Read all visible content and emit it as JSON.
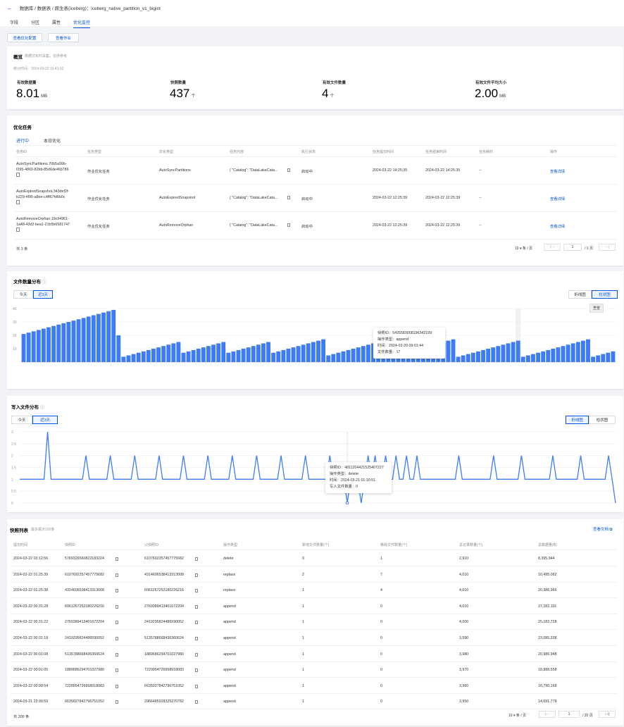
{
  "header": {
    "back": "←",
    "breadcrumb": "数据库 / 数据表 / 原生表(iceberg)：iceberg_native_partition_v1_bigint",
    "tabs": [
      "字段",
      "分区",
      "属性",
      "优化监控"
    ]
  },
  "actions": {
    "config": "查看优化配置",
    "jobs": "查看作业"
  },
  "overview": {
    "title": "概览",
    "subtitle": "数据非实时采集，仅供参考",
    "stat_time": "统计时间：2024-03-22 15:41:02",
    "metrics": [
      {
        "label": "有效数据量",
        "value": "8.01",
        "unit": "MB"
      },
      {
        "label": "快照数量",
        "value": "437",
        "unit": "个"
      },
      {
        "label": "有效文件数量",
        "value": "4",
        "unit": "个"
      },
      {
        "label": "有效文件平均大小",
        "value": "2.00",
        "unit": "MB"
      }
    ]
  },
  "tasks": {
    "title": "优化任务",
    "tabs": [
      "进行中",
      "本日优化"
    ],
    "columns": [
      "任务ID",
      "任务类型",
      "优化类型",
      "任务内容",
      "执行状态",
      "任务提交时间",
      "任务结束时间",
      "任务耗时",
      "操作"
    ],
    "rows": [
      {
        "id1": "AutoSyncPartitions.70b5a99b-",
        "id2": "f295-4860-82bb-85d6de46b786",
        "type": "作业优化任务",
        "opt": "AutoSyncPartitions",
        "content": "{ \"Catalog\": \"DataLakeCata...",
        "status": "启动中",
        "submit": "2024-03-22 14:25:35",
        "end": "2024-03-22 14:25:35",
        "cost": "--",
        "op": "查看详情"
      },
      {
        "id1": "AutoExpiredSnapshot.343def2f-",
        "id2": "b229-4f95-a8ee-c4ff67fd6b0c",
        "type": "作业优化任务",
        "opt": "AutoExpiredSnapshot",
        "content": "{ \"Catalog\": \"DataLakeCata...",
        "status": "启动中",
        "submit": "2024-03-22 12:25:39",
        "end": "2024-03-22 12:25:39",
        "cost": "--",
        "op": "查看详情"
      },
      {
        "id1": "AutoRemoveOrphan.19c94961-",
        "id2": "1a48-43d2-bea1-21b5b6581747",
        "type": "作业优化任务",
        "opt": "AutoRemoveOrphan",
        "content": "{ \"Catalog\": \"DataLakeCata...",
        "status": "启动中",
        "submit": "2024-03-22 12:25:39",
        "end": "2024-03-22 12:25:39",
        "cost": "--",
        "op": "查看详情"
      }
    ],
    "total": "共 3 条",
    "page_size": "10 ▾ 条 / 页",
    "page": "1",
    "pages": "/ 1 页"
  },
  "file_chart": {
    "title": "文件数量分布",
    "ranges": [
      "今天",
      "近3天"
    ],
    "views": [
      "折线图",
      "柱状图"
    ],
    "reset": "重置",
    "tooltip": {
      "l1": "快照ID：5425583008196342199",
      "l2": "操作类型：append",
      "l3": "时间：2024-03-20 09:01:44",
      "l4": "文件数量：17"
    }
  },
  "write_chart": {
    "title": "写入文件分布",
    "ranges": [
      "今天",
      "近3天"
    ],
    "views": [
      "折线图",
      "柱状图"
    ],
    "tooltip": {
      "l1": "快照ID：4811204421525407227",
      "l2": "操作类型：delete",
      "l3": "时间：2024-03-21 01:10:51",
      "l4": "写入文件数量：0"
    }
  },
  "chart_data": [
    {
      "type": "bar",
      "ylim": [
        0,
        40
      ],
      "yticks": [
        "40",
        "30",
        "20",
        "10"
      ],
      "values": [
        21,
        22,
        23,
        24,
        25,
        26,
        27,
        28,
        29,
        30,
        31,
        32,
        33,
        34,
        35,
        36,
        37,
        38,
        39,
        20,
        4,
        5,
        6,
        7,
        8,
        9,
        10,
        11,
        12,
        13,
        14,
        15,
        7,
        8,
        9,
        10,
        11,
        12,
        13,
        14,
        15,
        7,
        8,
        9,
        10,
        11,
        12,
        13,
        14,
        15,
        7,
        8,
        9,
        10,
        11,
        12,
        13,
        14,
        15,
        16,
        17,
        5,
        6,
        7,
        8,
        9,
        10,
        11,
        12,
        13,
        14,
        15,
        16,
        4,
        5,
        6,
        7,
        8,
        9,
        10,
        11,
        12,
        13,
        14,
        15,
        16,
        17,
        4,
        5,
        6,
        7,
        8,
        9,
        10,
        11,
        12,
        13,
        14,
        15,
        16,
        4,
        5,
        6,
        7,
        8,
        9,
        10,
        11,
        12,
        13,
        14,
        15,
        16,
        17,
        4,
        5,
        6,
        7,
        8
      ]
    },
    {
      "type": "line",
      "ylim": [
        0,
        3
      ],
      "yticks": [
        "3",
        "2.5",
        "2",
        "1.5",
        "1",
        "0.5",
        "0"
      ],
      "values": [
        1,
        1,
        1,
        1,
        1,
        1,
        1,
        1,
        3,
        1,
        1,
        1,
        1,
        1,
        1,
        1,
        1,
        1,
        1,
        2,
        1,
        1,
        1,
        1,
        1,
        1,
        2,
        1,
        1,
        1,
        1,
        1,
        1,
        2,
        1,
        1,
        1,
        1,
        1,
        1,
        2,
        1,
        1,
        1,
        1,
        1,
        1,
        2,
        1,
        1,
        1,
        1,
        1,
        1,
        2,
        1,
        1,
        1,
        1,
        1,
        1,
        2,
        1,
        1,
        1,
        1,
        1,
        1,
        2,
        1,
        1,
        1,
        1,
        1,
        1,
        2,
        1,
        1,
        1,
        1,
        1,
        1,
        2,
        1,
        1,
        1,
        1,
        1,
        1,
        2,
        1,
        1,
        1,
        1,
        0,
        1,
        1,
        1,
        0,
        1,
        2,
        1,
        2,
        1,
        1,
        2,
        1,
        1,
        2,
        1,
        1,
        2,
        1,
        1,
        2,
        1,
        1,
        1,
        1,
        1,
        1,
        1,
        1,
        1,
        1,
        1,
        2,
        1,
        1,
        1,
        1,
        1,
        1,
        1,
        1,
        1,
        2,
        1,
        1,
        1,
        1,
        1,
        1,
        1,
        2,
        1,
        1,
        1,
        1,
        1,
        1,
        1,
        1,
        2,
        1,
        1,
        1,
        1,
        1,
        1,
        1,
        2,
        1,
        1,
        1,
        1,
        1,
        1,
        1,
        2,
        1,
        0
      ]
    }
  ],
  "snapshots": {
    "title": "快照列表",
    "subtitle": "最多展示200条",
    "doc": "查看文档",
    "columns": [
      "提交时间",
      "快照ID",
      "父快照ID",
      "操作类型",
      "新增文件数量(个)",
      "移除文件数量(个)",
      "总记录数量(个)",
      "总数据量(B)"
    ],
    "rows": [
      [
        "2024-03-22 03:12:56",
        "5769326560822183224",
        "6107692357457775682",
        "delete",
        "0",
        "1",
        "2,910",
        "8,395,944"
      ],
      [
        "2024-03-22 01:25:39",
        "6107692357457775682",
        "4314606538413313008",
        "replace",
        "2",
        "7",
        "4,010",
        "10,495,062"
      ],
      [
        "2024-03-22 01:25:38",
        "4314606538413313008",
        "6061267253180226216",
        "replace",
        "1",
        "4",
        "4,010",
        "20,986,966"
      ],
      [
        "2024-03-22 00:31:28",
        "6061267253180226216",
        "2769389413401672204",
        "append",
        "1",
        "0",
        "4,010",
        "27,282,116"
      ],
      [
        "2024-03-22 00:31:22",
        "2769389413401672204",
        "2419295824486590052",
        "append",
        "1",
        "0",
        "4,000",
        "25,183,728"
      ],
      [
        "2024-03-22 00:31:18",
        "2419295824486590052",
        "5135788668436360624",
        "append",
        "1",
        "0",
        "3,990",
        "23,085,338"
      ],
      [
        "2024-03-22 00:01:08",
        "5135788668436360624",
        "1889686294701027980",
        "append",
        "1",
        "0",
        "3,980",
        "20,986,948"
      ],
      [
        "2024-03-22 00:01:05",
        "1889686294701027980",
        "7220954726658918083",
        "append",
        "1",
        "0",
        "3,970",
        "18,888,558"
      ],
      [
        "2024-03-22 00:00:54",
        "7220954726658918083",
        "6635027842796751052",
        "append",
        "1",
        "0",
        "3,960",
        "16,790,168"
      ],
      [
        "2024-03-21 23:30:59",
        "6635027842796751052",
        "2966485928325270782",
        "append",
        "1",
        "0",
        "3,950",
        "14,691,778"
      ]
    ],
    "total": "共 200 条",
    "page_size": "10 ▾ 条 / 页",
    "page": "1",
    "pages": "/ 20 页"
  }
}
